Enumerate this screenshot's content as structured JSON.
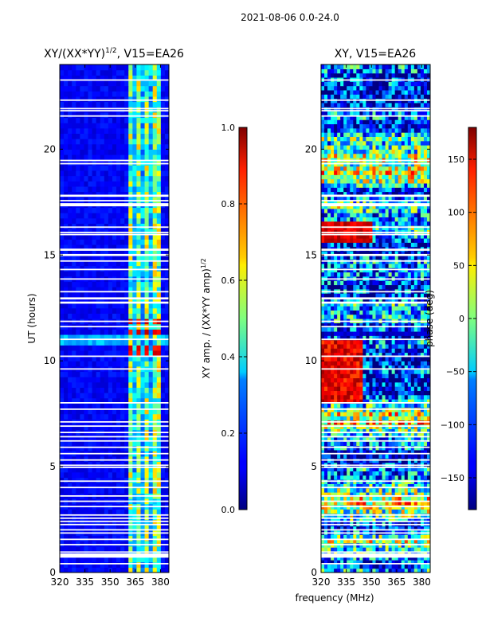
{
  "suptitle": "2021-08-06 0.0-24.0",
  "colors": {
    "frame": "#000000",
    "gap": "#ffffff"
  },
  "chart_data": [
    {
      "type": "heatmap",
      "title_main": "XY/(XX*YY)",
      "title_sup": "1/2",
      "title_rest": ", V15=EA26",
      "xlabel": "",
      "ylabel": "UT (hours)",
      "xlim": [
        320,
        385
      ],
      "ylim": [
        0,
        24
      ],
      "xticks": [
        320,
        335,
        350,
        365,
        380
      ],
      "yticks": [
        0,
        5,
        10,
        15,
        20
      ],
      "colormap": "jet",
      "colorbar": {
        "label_main": "XY amp. / (XX*YY amp)",
        "label_sup": "1/2",
        "range": [
          0.0,
          1.0
        ],
        "ticks": [
          "0.0",
          "0.2",
          "0.4",
          "0.6",
          "0.8",
          "1.0"
        ]
      },
      "rfi_channels_mhz": [
        361.5,
        363,
        366,
        367.5,
        370.5,
        372,
        376.5,
        378,
        379.5
      ],
      "high_amp_hours": [
        [
          10.3,
          10.8
        ],
        [
          11.3,
          11.5
        ],
        [
          11.7,
          12.1
        ]
      ],
      "flagged_hours": [
        [
          23.25,
          23.3
        ],
        [
          22.3,
          22.35
        ],
        [
          21.9,
          21.95
        ],
        [
          21.8,
          21.85
        ],
        [
          21.55,
          21.6
        ],
        [
          19.45,
          19.5
        ],
        [
          19.3,
          19.35
        ],
        [
          17.75,
          17.85
        ],
        [
          17.55,
          17.6
        ],
        [
          17.3,
          17.45
        ],
        [
          16.3,
          16.35
        ],
        [
          16.05,
          16.1
        ],
        [
          15.95,
          16.0
        ],
        [
          15.2,
          15.3
        ],
        [
          14.95,
          15.05
        ],
        [
          14.7,
          14.75
        ],
        [
          14.3,
          14.35
        ],
        [
          13.85,
          13.9
        ],
        [
          13.25,
          13.3
        ],
        [
          12.9,
          13.0
        ],
        [
          12.7,
          12.8
        ],
        [
          11.85,
          11.9
        ],
        [
          11.6,
          11.65
        ],
        [
          11.0,
          11.05
        ],
        [
          10.2,
          10.25
        ],
        [
          9.6,
          9.65
        ],
        [
          8.0,
          8.05
        ],
        [
          7.7,
          7.75
        ],
        [
          7.1,
          7.15
        ],
        [
          6.9,
          6.95
        ],
        [
          6.6,
          6.65
        ],
        [
          6.4,
          6.45
        ],
        [
          6.2,
          6.25
        ],
        [
          5.9,
          5.95
        ],
        [
          5.6,
          5.65
        ],
        [
          5.3,
          5.35
        ],
        [
          5.05,
          5.1
        ],
        [
          4.95,
          5.0
        ],
        [
          4.3,
          4.35
        ],
        [
          4.0,
          4.05
        ],
        [
          3.6,
          3.65
        ],
        [
          3.35,
          3.4
        ],
        [
          3.1,
          3.15
        ],
        [
          2.7,
          2.75
        ],
        [
          2.55,
          2.6
        ],
        [
          2.4,
          2.45
        ],
        [
          2.25,
          2.3
        ],
        [
          2.0,
          2.05
        ],
        [
          1.85,
          1.9
        ],
        [
          1.55,
          1.6
        ],
        [
          1.3,
          1.35
        ],
        [
          0.95,
          1.0
        ],
        [
          0.7,
          0.9
        ],
        [
          0.4,
          0.45
        ]
      ]
    },
    {
      "type": "heatmap",
      "title_main": "XY, V15=EA26",
      "title_sup": "",
      "title_rest": "",
      "xlabel": "frequency (MHz)",
      "ylabel": "",
      "xlim": [
        320,
        385
      ],
      "ylim": [
        0,
        24
      ],
      "xticks": [
        320,
        335,
        350,
        365,
        380
      ],
      "yticks": [
        0,
        5,
        10,
        15,
        20
      ],
      "colormap": "jet",
      "colorbar": {
        "label_main": "phase (deg)",
        "label_sup": "",
        "range": [
          -180,
          180
        ],
        "ticks": [
          "−150",
          "−100",
          "−50",
          "0",
          "50",
          "100",
          "150"
        ],
        "tick_values": [
          -150,
          -100,
          -50,
          0,
          50,
          100,
          150
        ]
      },
      "flagged_hours": [
        [
          23.25,
          23.3
        ],
        [
          22.3,
          22.35
        ],
        [
          21.9,
          21.95
        ],
        [
          21.8,
          21.85
        ],
        [
          21.55,
          21.6
        ],
        [
          19.45,
          19.5
        ],
        [
          19.3,
          19.35
        ],
        [
          17.75,
          17.85
        ],
        [
          17.55,
          17.6
        ],
        [
          17.3,
          17.45
        ],
        [
          16.3,
          16.35
        ],
        [
          16.05,
          16.1
        ],
        [
          15.95,
          16.0
        ],
        [
          15.2,
          15.3
        ],
        [
          14.95,
          15.05
        ],
        [
          14.7,
          14.75
        ],
        [
          14.3,
          14.35
        ],
        [
          13.85,
          13.9
        ],
        [
          13.25,
          13.3
        ],
        [
          12.9,
          13.0
        ],
        [
          12.7,
          12.8
        ],
        [
          11.85,
          11.9
        ],
        [
          11.6,
          11.65
        ],
        [
          11.0,
          11.05
        ],
        [
          10.2,
          10.25
        ],
        [
          9.6,
          9.65
        ],
        [
          8.0,
          8.05
        ],
        [
          7.7,
          7.75
        ],
        [
          7.1,
          7.15
        ],
        [
          6.9,
          6.95
        ],
        [
          6.6,
          6.65
        ],
        [
          6.4,
          6.45
        ],
        [
          6.2,
          6.25
        ],
        [
          5.9,
          5.95
        ],
        [
          5.6,
          5.65
        ],
        [
          5.3,
          5.35
        ],
        [
          5.05,
          5.1
        ],
        [
          4.95,
          5.0
        ],
        [
          4.3,
          4.35
        ],
        [
          4.0,
          4.05
        ],
        [
          3.6,
          3.65
        ],
        [
          3.35,
          3.4
        ],
        [
          3.1,
          3.15
        ],
        [
          2.7,
          2.75
        ],
        [
          2.55,
          2.6
        ],
        [
          2.4,
          2.45
        ],
        [
          2.25,
          2.3
        ],
        [
          2.0,
          2.05
        ],
        [
          1.85,
          1.9
        ],
        [
          1.55,
          1.6
        ],
        [
          1.3,
          1.35
        ],
        [
          0.95,
          1.0
        ],
        [
          0.7,
          0.9
        ],
        [
          0.4,
          0.45
        ]
      ]
    }
  ]
}
